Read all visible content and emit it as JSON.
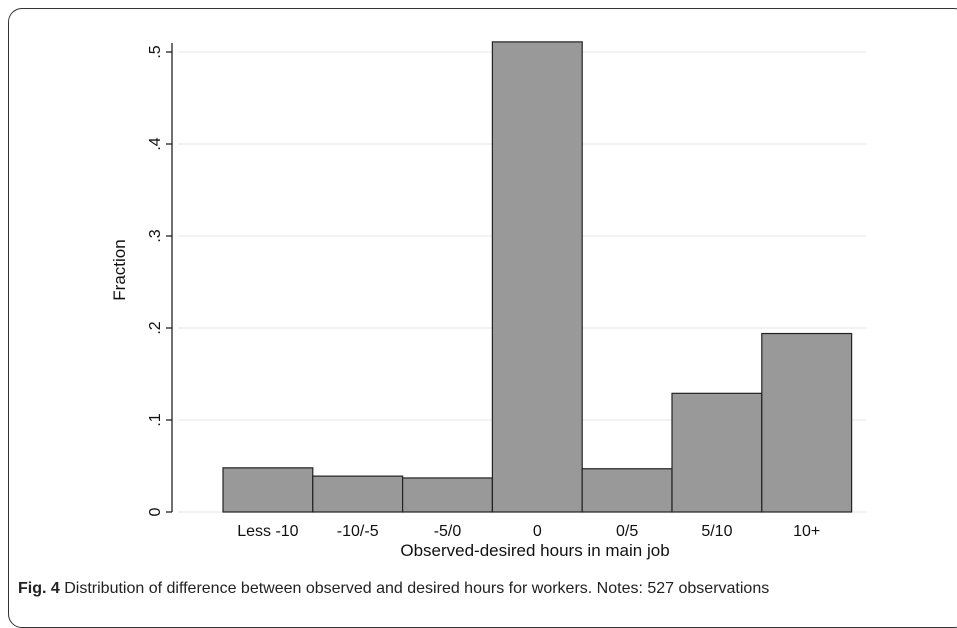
{
  "chart_data": {
    "type": "bar",
    "categories": [
      "Less -10",
      "-10/-5",
      "-5/0",
      "0",
      "0/5",
      "5/10",
      "10+"
    ],
    "values": [
      0.048,
      0.039,
      0.037,
      0.511,
      0.047,
      0.129,
      0.194
    ],
    "xlabel": "Observed-desired hours in main job",
    "ylabel": "Fraction",
    "ylim": [
      0,
      0.5
    ],
    "yticks": [
      0,
      0.1,
      0.2,
      0.3,
      0.4,
      0.5
    ],
    "ytick_labels": [
      "0",
      ".1",
      ".2",
      ".3",
      ".4",
      ".5"
    ],
    "grid": true,
    "colors": {
      "bar_fill": "#999999",
      "bar_stroke": "#222222",
      "grid": "#e6e6e6"
    }
  },
  "caption": {
    "label": "Fig. 4",
    "text": " Distribution of difference between observed and desired hours for workers. Notes: 527 observations"
  }
}
